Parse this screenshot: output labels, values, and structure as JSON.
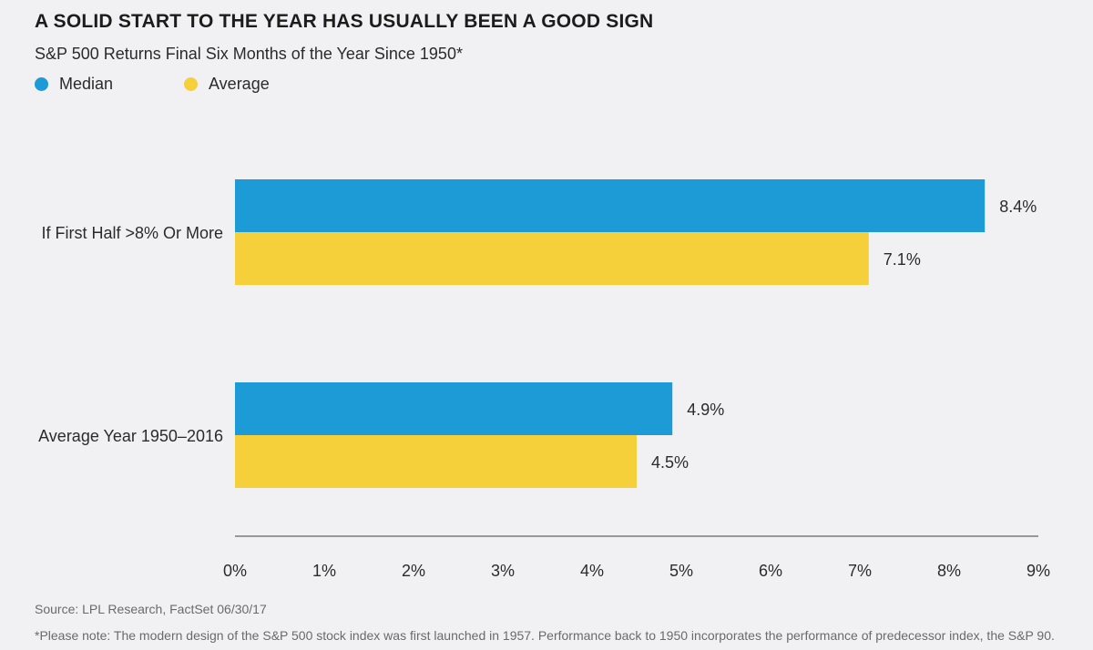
{
  "title": "A SOLID START TO THE YEAR HAS USUALLY BEEN A GOOD SIGN",
  "subtitle": "S&P 500 Returns Final Six Months of the Year Since 1950*",
  "colors": {
    "median": "#1c9bd7",
    "average": "#f5d03a",
    "axis": "#7a7a7a",
    "text": "#2b2b2b"
  },
  "legend": [
    {
      "label": "Median",
      "color": "#1c9bd7"
    },
    {
      "label": "Average",
      "color": "#f5d03a"
    }
  ],
  "chart_data": {
    "type": "bar",
    "orientation": "horizontal",
    "categories": [
      "If First Half >8% Or More",
      "Average Year 1950–2016"
    ],
    "series": [
      {
        "name": "Median",
        "values": [
          8.4,
          4.9
        ],
        "labels": [
          "8.4%",
          "4.9%"
        ]
      },
      {
        "name": "Average",
        "values": [
          7.1,
          4.5
        ],
        "labels": [
          "7.1%",
          "4.5%"
        ]
      }
    ],
    "xlim": [
      0,
      9
    ],
    "xticks": [
      0,
      1,
      2,
      3,
      4,
      5,
      6,
      7,
      8,
      9
    ],
    "xtick_labels": [
      "0%",
      "1%",
      "2%",
      "3%",
      "4%",
      "5%",
      "6%",
      "7%",
      "8%",
      "9%"
    ],
    "xlabel": "",
    "ylabel": "",
    "grid": false,
    "legend_position": "top-left"
  },
  "footer": {
    "source": "Source: LPL Research, FactSet 06/30/17",
    "note": "*Please note: The modern design of the S&P 500 stock index was first launched in 1957. Performance back to 1950 incorporates the performance of predecessor index, the S&P 90."
  }
}
